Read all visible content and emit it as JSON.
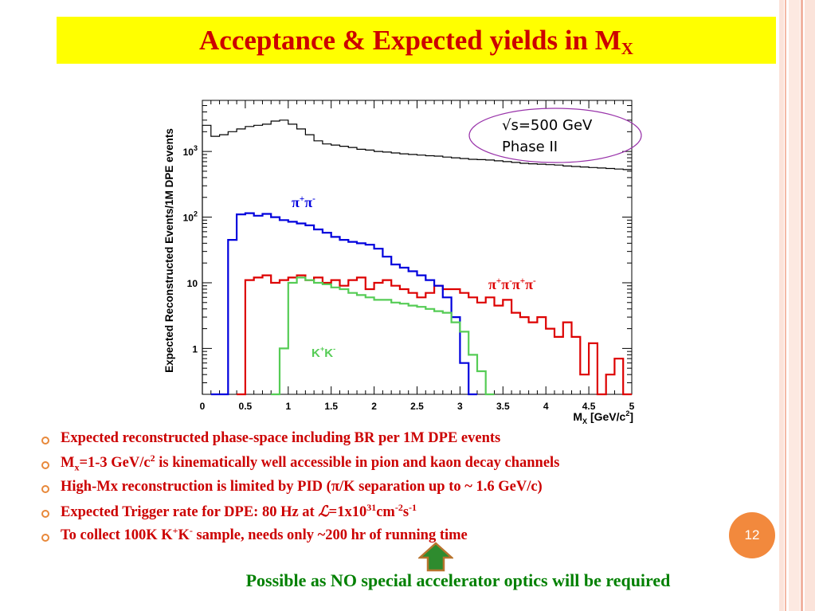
{
  "slide": {
    "title_main": "Acceptance & Expected yields in M",
    "title_sub": "X",
    "page_number": "12",
    "footer_note": "Possible as NO special accelerator optics will be required"
  },
  "bullets": [
    {
      "parts": [
        "Expected reconstructed phase-space including BR per 1M DPE events"
      ]
    },
    {
      "parts": [
        "M",
        "x",
        "=1-3 GeV/c",
        "2",
        " is kinematically well accessible in pion and kaon decay channels"
      ]
    },
    {
      "parts": [
        "High-Mx reconstruction is limited by PID (π/K separation up to ~ 1.6 GeV/c)"
      ]
    },
    {
      "parts": [
        "Expected Trigger rate for DPE: 80 Hz at ",
        "ℒ",
        "=1x10",
        "31",
        "cm",
        "-2",
        "s",
        "-1"
      ]
    },
    {
      "parts": [
        "To collect 100K K",
        "+",
        "K",
        "-",
        " sample, needs only ~200 hr of running time"
      ]
    }
  ],
  "chart_data": {
    "type": "line",
    "xlabel": "M",
    "xlabel_sub": "X",
    "xlabel_unit": "[GeV/c",
    "xlabel_unit_sup": "2",
    "xlabel_unit_end": "]",
    "ylabel": "Expected Reconstructed Events/1M DPE events",
    "xlim": [
      0,
      5
    ],
    "ylim": [
      0.2,
      6000
    ],
    "log_y": true,
    "x_ticks": [
      "0",
      "0.5",
      "1",
      "1.5",
      "2",
      "2.5",
      "3",
      "3.5",
      "4",
      "4.5",
      "5"
    ],
    "y_ticks": [
      {
        "label": "1",
        "exp": ""
      },
      {
        "label": "10",
        "exp": ""
      },
      {
        "label": "10",
        "exp": "2"
      },
      {
        "label": "10",
        "exp": "3"
      }
    ],
    "y_tick_values": [
      1,
      10,
      100,
      1000
    ],
    "bin_width": 0.1,
    "annotation": {
      "line1": "√s=500 GeV",
      "line2": "Phase II"
    },
    "series": [
      {
        "name": "total",
        "color": "#000000",
        "x_start": 0.0,
        "values": [
          2500,
          1700,
          1800,
          2000,
          2200,
          2400,
          2500,
          2600,
          2900,
          3000,
          2600,
          2200,
          1800,
          1450,
          1300,
          1250,
          1200,
          1150,
          1080,
          1050,
          1000,
          980,
          950,
          920,
          900,
          880,
          860,
          850,
          820,
          800,
          780,
          760,
          750,
          740,
          720,
          700,
          680,
          660,
          650,
          640,
          630,
          620,
          600,
          590,
          580,
          570,
          560,
          550,
          540,
          530
        ]
      },
      {
        "name": "π⁺π⁻",
        "label_sup": [
          "+",
          "-"
        ],
        "color": "#0000dd",
        "x_start": 0.1,
        "values": [
          0.2,
          0.2,
          45,
          110,
          115,
          105,
          112,
          100,
          90,
          85,
          80,
          75,
          65,
          58,
          50,
          45,
          42,
          40,
          38,
          33,
          25,
          19,
          17,
          15,
          13,
          11,
          9,
          6,
          3,
          0.6,
          0.2
        ]
      },
      {
        "name": "π⁺π⁻π⁺π⁻",
        "label_sup": [
          "+",
          "-",
          "+",
          "-"
        ],
        "color": "#dd0000",
        "x_start": 0.4,
        "values": [
          0.2,
          11,
          12,
          13,
          10,
          11,
          12,
          13,
          11,
          12,
          10,
          11,
          9,
          11,
          12,
          8,
          10,
          11,
          9,
          8,
          7,
          6,
          7,
          9,
          8,
          8,
          7,
          6,
          5,
          6,
          4.5,
          5.5,
          3.5,
          3.0,
          2.5,
          3.0,
          2.0,
          1.5,
          2.5,
          1.5,
          0.4,
          1.2,
          0.2,
          0.4,
          0.7,
          0.2
        ]
      },
      {
        "name": "K⁺K⁻",
        "label_sup": [
          "+",
          "-"
        ],
        "color": "#55cc55",
        "x_start": 0.8,
        "values": [
          0.2,
          1.0,
          10,
          12,
          11,
          10,
          9.5,
          8.5,
          8,
          7,
          6.5,
          6,
          5.5,
          5.5,
          5.0,
          4.8,
          4.5,
          4.3,
          4.0,
          3.7,
          3.5,
          2.5,
          1.8,
          0.8,
          0.45,
          0.2
        ]
      }
    ]
  },
  "colors": {
    "title_bg": "#ffff00",
    "title_text": "#cc0000",
    "bullet_text": "#cc0000",
    "bullet_marker": "#e8883a",
    "badge": "#f2893d",
    "footer_text": "#008000",
    "arrow_fill": "#2e8b2e",
    "annotation_ellipse": "#9933aa",
    "edge_stripe": "#f4c6b8"
  }
}
